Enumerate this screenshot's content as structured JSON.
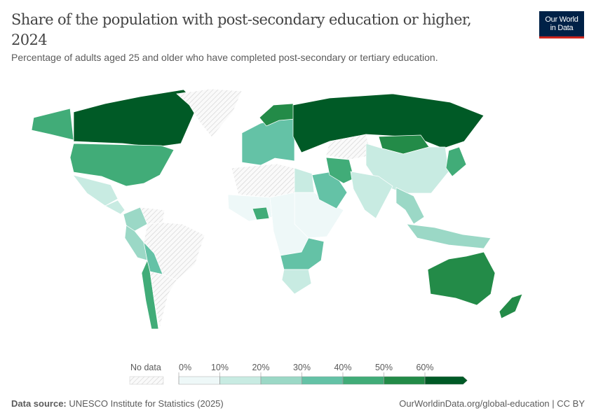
{
  "header": {
    "title": "Share of the population with post-secondary education or higher, 2024",
    "subtitle": "Percentage of adults aged 25 and older who have completed post-secondary or tertiary education."
  },
  "logo": {
    "line1": "Our World",
    "line2": "in Data"
  },
  "legend": {
    "no_data_label": "No data",
    "tick_labels": [
      "0%",
      "10%",
      "20%",
      "30%",
      "40%",
      "50%",
      "60%"
    ],
    "bin_colors": [
      "#eef8f8",
      "#c8ebe2",
      "#9bd8c6",
      "#64c2a6",
      "#41ac78",
      "#238b48",
      "#005a26"
    ],
    "no_data_color": "#e4e4e4"
  },
  "map": {
    "regions": [
      {
        "name": "Canada",
        "bin": 6
      },
      {
        "name": "United States",
        "bin": 4
      },
      {
        "name": "Alaska",
        "bin": 4
      },
      {
        "name": "Greenland",
        "bin": null
      },
      {
        "name": "Mexico",
        "bin": 1
      },
      {
        "name": "Central America",
        "bin": 1
      },
      {
        "name": "Colombia",
        "bin": 2
      },
      {
        "name": "Venezuela",
        "bin": null
      },
      {
        "name": "Peru",
        "bin": 2
      },
      {
        "name": "Brazil",
        "bin": null
      },
      {
        "name": "Bolivia",
        "bin": 3
      },
      {
        "name": "Chile",
        "bin": 4
      },
      {
        "name": "Argentina",
        "bin": null
      },
      {
        "name": "Europe",
        "bin": 3
      },
      {
        "name": "Scandinavia",
        "bin": 5
      },
      {
        "name": "Russia",
        "bin": 6
      },
      {
        "name": "North Africa",
        "bin": null
      },
      {
        "name": "West Africa",
        "bin": 0
      },
      {
        "name": "Nigeria",
        "bin": 4
      },
      {
        "name": "Egypt",
        "bin": 1
      },
      {
        "name": "East Africa",
        "bin": 0
      },
      {
        "name": "Central Africa",
        "bin": 0
      },
      {
        "name": "Southern Africa",
        "bin": 3
      },
      {
        "name": "South Africa",
        "bin": 1
      },
      {
        "name": "Saudi Arabia",
        "bin": 3
      },
      {
        "name": "Iran",
        "bin": 4
      },
      {
        "name": "Kazakhstan",
        "bin": null
      },
      {
        "name": "Mongolia",
        "bin": 5
      },
      {
        "name": "China",
        "bin": 1
      },
      {
        "name": "India",
        "bin": 1
      },
      {
        "name": "Southeast Asia",
        "bin": 2
      },
      {
        "name": "Japan",
        "bin": 4
      },
      {
        "name": "Indonesia",
        "bin": 2
      },
      {
        "name": "Australia",
        "bin": 5
      },
      {
        "name": "New Zealand",
        "bin": 5
      }
    ]
  },
  "footer": {
    "source_label": "Data source:",
    "source_text": "UNESCO Institute for Statistics (2025)",
    "credit": "OurWorldinData.org/global-education | CC BY"
  }
}
